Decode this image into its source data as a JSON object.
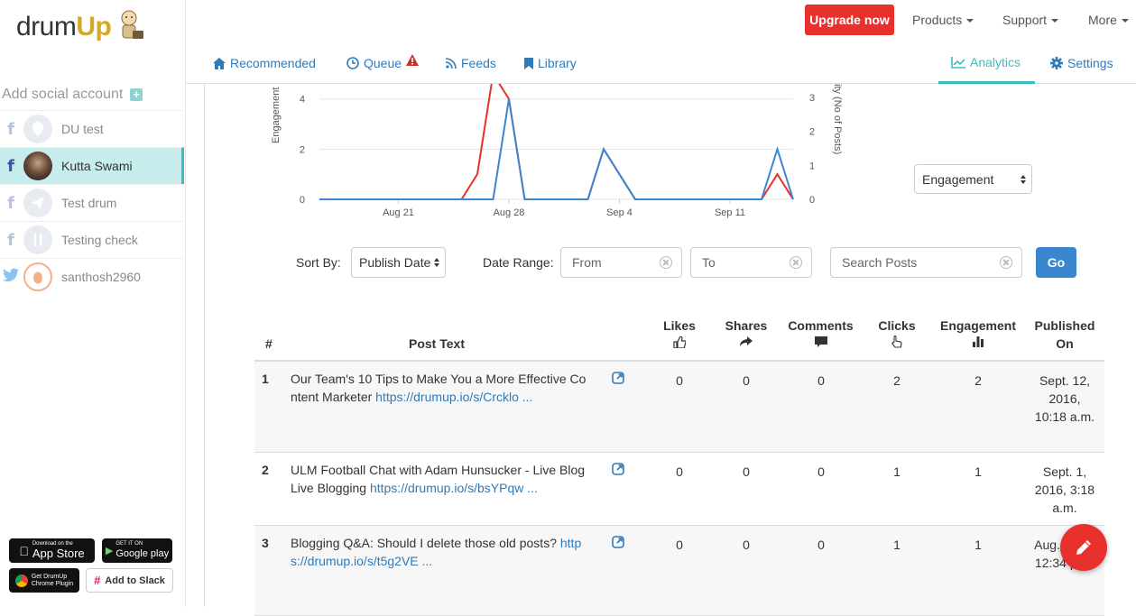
{
  "app": {
    "logo_text_a": "drum",
    "logo_text_b": "Up",
    "logo_text_c": "p"
  },
  "sidebar": {
    "add_account_label": "Add social account",
    "accounts": [
      {
        "network": "facebook",
        "name": "DU test",
        "active": false
      },
      {
        "network": "facebook",
        "name": "Kutta Swami",
        "active": true
      },
      {
        "network": "facebook",
        "name": "Test drum",
        "active": false
      },
      {
        "network": "facebook",
        "name": "Testing check",
        "active": false
      },
      {
        "network": "twitter",
        "name": "santhosh2960",
        "active": false
      }
    ],
    "badges": {
      "appstore_small": "Download on the",
      "appstore_large": "App Store",
      "googleplay_small": "GET IT ON",
      "googleplay_large": "Google play",
      "chrome_line1": "Get DrumUp",
      "chrome_line2": "Chrome Plugin",
      "slack": "Add to Slack"
    }
  },
  "topnav": {
    "upgrade": "Upgrade now",
    "products": "Products",
    "support": "Support",
    "more": "More"
  },
  "subnav": {
    "recommended": "Recommended",
    "queue": "Queue",
    "feeds": "Feeds",
    "library": "Library",
    "analytics": "Analytics",
    "settings": "Settings"
  },
  "chart_data": {
    "type": "line",
    "ylabel_left": "Engagement",
    "ylabel_right": "ity (No of Posts)",
    "x_tick_labels": [
      "Aug 21",
      "Aug 28",
      "Sep 4",
      "Sep 11"
    ],
    "y_left_ticks": [
      "0",
      "2",
      "4"
    ],
    "y_right_ticks": [
      "0",
      "1",
      "2",
      "3"
    ],
    "series": [
      {
        "color": "#e8312d",
        "values": [
          0,
          0,
          0,
          0,
          0,
          0,
          0,
          0,
          0,
          0,
          1,
          5,
          4,
          0,
          0,
          0,
          0,
          0,
          2,
          1,
          0,
          0,
          0,
          0,
          0,
          0,
          0,
          0,
          0,
          1,
          0
        ]
      },
      {
        "color": "#3a86d0",
        "values": [
          0,
          0,
          0,
          0,
          0,
          0,
          0,
          0,
          0,
          0,
          0,
          0,
          4,
          0,
          0,
          0,
          0,
          0,
          2,
          1,
          0,
          0,
          0,
          0,
          0,
          0,
          0,
          0,
          0,
          2,
          0
        ]
      }
    ]
  },
  "controls": {
    "metric_select": "Engagement",
    "sort_label": "Sort By:",
    "sort_value": "Publish Date",
    "date_range_label": "Date Range:",
    "from_placeholder": "From",
    "to_placeholder": "To",
    "search_placeholder": "Search Posts",
    "go": "Go"
  },
  "table": {
    "headers": {
      "num": "#",
      "post_text": "Post Text",
      "likes": "Likes",
      "shares": "Shares",
      "comments": "Comments",
      "clicks": "Clicks",
      "engagement": "Engagement",
      "published": "Published On"
    },
    "rows": [
      {
        "num": "1",
        "text": "Our Team's 10 Tips to Make You a More Effective Content Marketer ",
        "link": "https://drumup.io/s/Crcklo ...",
        "likes": "0",
        "shares": "0",
        "comments": "0",
        "clicks": "2",
        "engagement": "2",
        "published": "Sept. 12, 2016, 10:18 a.m."
      },
      {
        "num": "2",
        "text": "ULM Football Chat with Adam Hunsucker - Live Blog Live Blogging ",
        "link": "https://drumup.io/s/bsYPqw ...",
        "likes": "0",
        "shares": "0",
        "comments": "0",
        "clicks": "1",
        "engagement": "1",
        "published": "Sept. 1, 2016, 3:18 a.m."
      },
      {
        "num": "3",
        "text": "Blogging Q&A: Should I delete those old posts? ",
        "link": "https://drumup.io/s/t5g2VE ...",
        "likes": "0",
        "shares": "0",
        "comments": "0",
        "clicks": "1",
        "engagement": "1",
        "published": "Aug. 2016, 12:34 p.m."
      }
    ]
  }
}
